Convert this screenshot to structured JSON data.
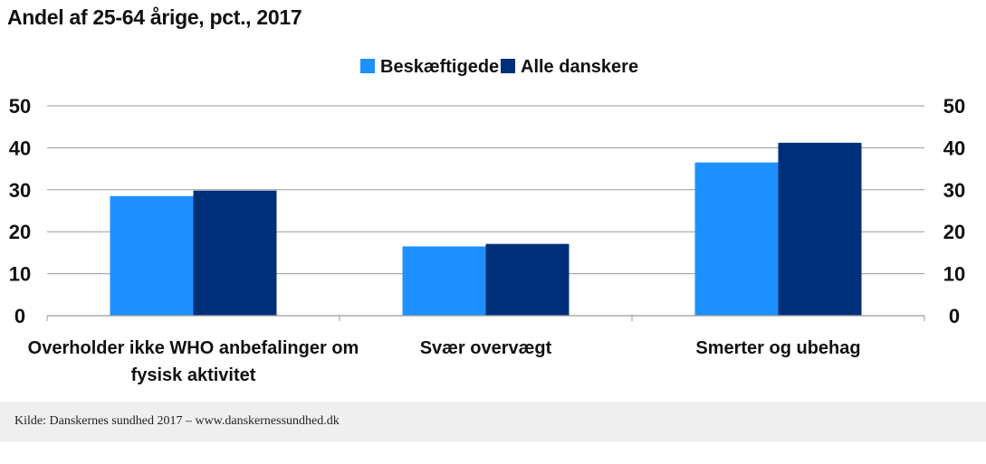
{
  "chart_data": {
    "type": "bar",
    "title": "Andel af 25-64 årige, pct., 2017",
    "categories": [
      [
        "Overholder ikke WHO anbefalinger om",
        "fysisk aktivitet"
      ],
      [
        "Svær overvægt"
      ],
      [
        "Smerter og ubehag"
      ]
    ],
    "series": [
      {
        "name": "Beskæftigede",
        "color": "#1e90ff",
        "values": [
          28.5,
          16.5,
          36.5
        ]
      },
      {
        "name": "Alle danskere",
        "color": "#002f7a",
        "values": [
          29.8,
          17.1,
          41.2
        ]
      }
    ],
    "ylim": [
      0,
      50
    ],
    "yticks": [
      0,
      10,
      20,
      30,
      40,
      50
    ],
    "grid": true,
    "legend": "top-center",
    "xlabel": "",
    "ylabel": ""
  },
  "footer": {
    "source": "Kilde: Danskernes sundhed 2017 – www.danskernessundhed.dk"
  }
}
